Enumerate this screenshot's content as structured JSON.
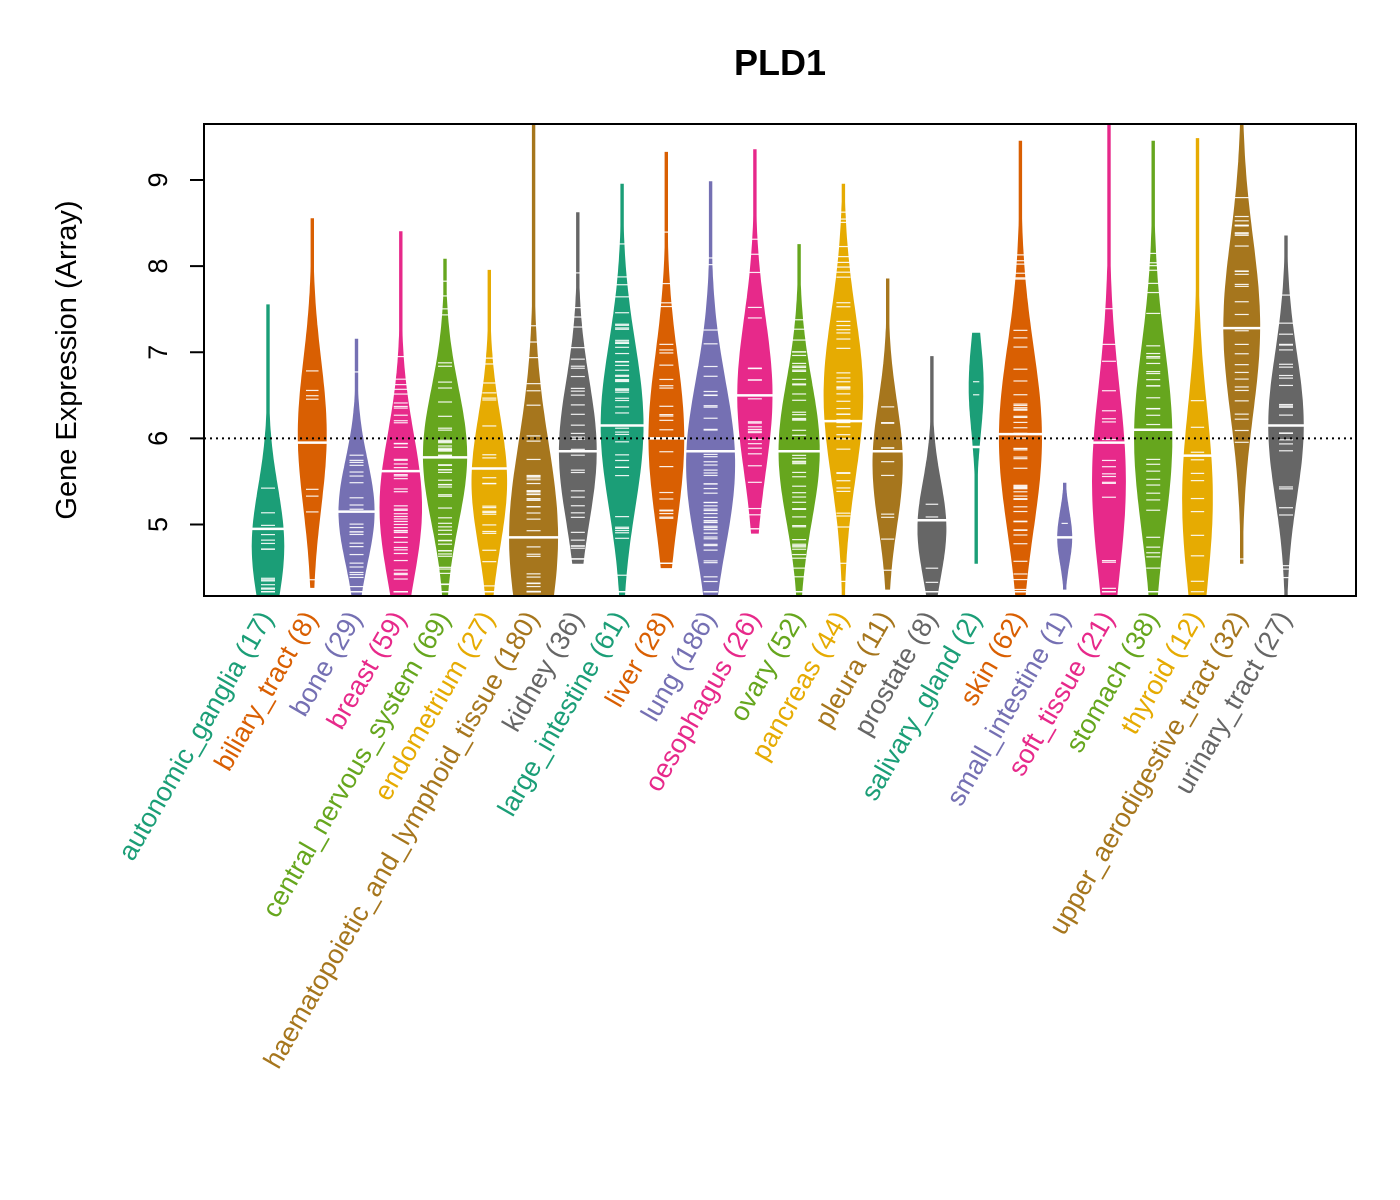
{
  "chart_data": {
    "type": "violin",
    "title": "PLD1",
    "ylabel": "Gene Expression (Array)",
    "xlabel": "",
    "ylim": [
      4.17,
      9.65
    ],
    "yticks": [
      5,
      6,
      7,
      8,
      9
    ],
    "reference_line": 6.0,
    "series": [
      {
        "name": "autonomic_ganglia",
        "label": "autonomic_ganglia (17)",
        "count": 17,
        "color": "#1B9E77",
        "min": 4.17,
        "max": 7.55,
        "median": 4.95,
        "mode": 4.75
      },
      {
        "name": "biliary_tract",
        "label": "biliary_tract (8)",
        "count": 8,
        "color": "#D95F02",
        "min": 4.27,
        "max": 8.55,
        "median": 5.95,
        "mode": 6.05
      },
      {
        "name": "bone",
        "label": "bone (29)",
        "count": 29,
        "color": "#7570B3",
        "min": 4.17,
        "max": 7.15,
        "median": 5.15,
        "mode": 5.15
      },
      {
        "name": "breast",
        "label": "breast (59)",
        "count": 59,
        "color": "#E7298A",
        "min": 4.17,
        "max": 8.4,
        "median": 5.62,
        "mode": 5.2
      },
      {
        "name": "central_nervous_system",
        "label": "central_nervous_system (69)",
        "count": 69,
        "color": "#66A61E",
        "min": 4.17,
        "max": 8.08,
        "median": 5.78,
        "mode": 5.8
      },
      {
        "name": "endometrium",
        "label": "endometrium (27)",
        "count": 27,
        "color": "#E6AB02",
        "min": 4.17,
        "max": 7.95,
        "median": 5.65,
        "mode": 5.5
      },
      {
        "name": "haematopoietic_and_lymphoid_tissue",
        "label": "haematopoietic_and_lymphoid_tissue (180)",
        "count": 180,
        "color": "#A6761D",
        "min": 4.17,
        "max": 9.65,
        "median": 4.85,
        "mode": 4.85
      },
      {
        "name": "kidney",
        "label": "kidney (36)",
        "count": 36,
        "color": "#666666",
        "min": 4.55,
        "max": 8.62,
        "median": 5.85,
        "mode": 5.85
      },
      {
        "name": "large_intestine",
        "label": "large_intestine (61)",
        "count": 61,
        "color": "#1B9E77",
        "min": 4.17,
        "max": 8.95,
        "median": 6.15,
        "mode": 6.15
      },
      {
        "name": "liver",
        "label": "liver (28)",
        "count": 28,
        "color": "#D95F02",
        "min": 4.5,
        "max": 9.32,
        "median": 6.0,
        "mode": 6.0
      },
      {
        "name": "lung",
        "label": "lung (186)",
        "count": 186,
        "color": "#7570B3",
        "min": 4.17,
        "max": 8.98,
        "median": 5.85,
        "mode": 5.7
      },
      {
        "name": "oesophagus",
        "label": "oesophagus (26)",
        "count": 26,
        "color": "#E7298A",
        "min": 4.9,
        "max": 9.35,
        "median": 6.5,
        "mode": 6.5
      },
      {
        "name": "ovary",
        "label": "ovary (52)",
        "count": 52,
        "color": "#66A61E",
        "min": 4.17,
        "max": 8.25,
        "median": 5.85,
        "mode": 5.85
      },
      {
        "name": "pancreas",
        "label": "pancreas (44)",
        "count": 44,
        "color": "#E6AB02",
        "min": 4.17,
        "max": 8.95,
        "median": 6.2,
        "mode": 6.5
      },
      {
        "name": "pleura",
        "label": "pleura (11)",
        "count": 11,
        "color": "#A6761D",
        "min": 4.25,
        "max": 7.85,
        "median": 5.85,
        "mode": 5.7
      },
      {
        "name": "prostate",
        "label": "prostate (8)",
        "count": 8,
        "color": "#666666",
        "min": 4.17,
        "max": 6.95,
        "median": 5.05,
        "mode": 4.95
      },
      {
        "name": "salivary_gland",
        "label": "salivary_gland (2)",
        "count": 2,
        "color": "#1B9E77",
        "min": 4.55,
        "max": 7.22,
        "median": 5.9,
        "mode": 6.6
      },
      {
        "name": "skin",
        "label": "skin (62)",
        "count": 62,
        "color": "#D95F02",
        "min": 4.17,
        "max": 9.45,
        "median": 6.05,
        "mode": 6.0
      },
      {
        "name": "small_intestine",
        "label": "small_intestine (1)",
        "count": 1,
        "color": "#7570B3",
        "min": 4.25,
        "max": 5.48,
        "median": 4.85,
        "mode": 4.85
      },
      {
        "name": "soft_tissue",
        "label": "soft_tissue (21)",
        "count": 21,
        "color": "#E7298A",
        "min": 4.17,
        "max": 9.65,
        "median": 5.95,
        "mode": 5.5
      },
      {
        "name": "stomach",
        "label": "stomach (38)",
        "count": 38,
        "color": "#66A61E",
        "min": 4.17,
        "max": 9.45,
        "median": 6.1,
        "mode": 6.0
      },
      {
        "name": "thyroid",
        "label": "thyroid (12)",
        "count": 12,
        "color": "#E6AB02",
        "min": 4.17,
        "max": 9.48,
        "median": 5.8,
        "mode": 5.3
      },
      {
        "name": "upper_aerodigestive_tract",
        "label": "upper_aerodigestive_tract (32)",
        "count": 32,
        "color": "#A6761D",
        "min": 4.55,
        "max": 9.65,
        "median": 7.28,
        "mode": 7.3
      },
      {
        "name": "urinary_tract",
        "label": "urinary_tract (27)",
        "count": 27,
        "color": "#666666",
        "min": 4.17,
        "max": 8.35,
        "median": 6.15,
        "mode": 6.15
      }
    ]
  }
}
